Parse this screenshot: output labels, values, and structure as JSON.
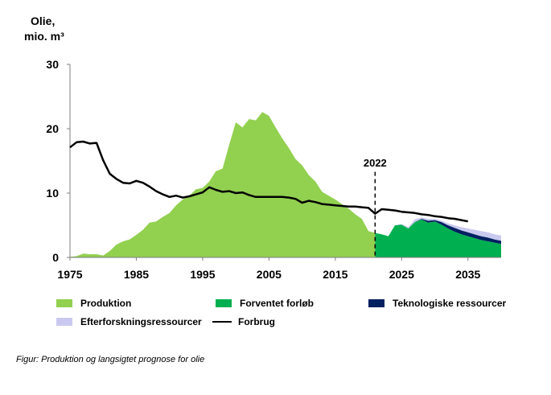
{
  "chart_data": {
    "type": "area",
    "ylabel_lines": [
      "Olie,",
      "mio. m³"
    ],
    "xlim": [
      1975,
      2040
    ],
    "ylim": [
      0,
      30
    ],
    "x_ticks": [
      1975,
      1985,
      1995,
      2005,
      2015,
      2025,
      2035
    ],
    "y_ticks": [
      0,
      10,
      20,
      30
    ],
    "annotation": {
      "label": "2022",
      "x": 2021
    },
    "colors": {
      "produktion": "#92D050",
      "forventet": "#00B050",
      "teknologiske": "#002060",
      "efterforskning": "#C9C9F0",
      "forbrug": "#000000"
    },
    "series": [
      {
        "name": "Produktion",
        "x": [
          1975,
          1976,
          1977,
          1978,
          1979,
          1980,
          1981,
          1982,
          1983,
          1984,
          1985,
          1986,
          1987,
          1988,
          1989,
          1990,
          1991,
          1992,
          1993,
          1994,
          1995,
          1996,
          1997,
          1998,
          1999,
          2000,
          2001,
          2002,
          2003,
          2004,
          2005,
          2006,
          2007,
          2008,
          2009,
          2010,
          2011,
          2012,
          2013,
          2014,
          2015,
          2016,
          2017,
          2018,
          2019,
          2020,
          2021
        ],
        "values": [
          0.1,
          0.2,
          0.6,
          0.5,
          0.5,
          0.3,
          1.0,
          2.0,
          2.5,
          2.8,
          3.5,
          4.3,
          5.4,
          5.6,
          6.3,
          6.9,
          8.1,
          9.0,
          9.6,
          10.6,
          10.8,
          11.8,
          13.4,
          13.8,
          17.5,
          21.0,
          20.2,
          21.5,
          21.3,
          22.6,
          22.0,
          20.2,
          18.5,
          17.0,
          15.3,
          14.3,
          12.8,
          11.8,
          10.2,
          9.6,
          9.0,
          8.3,
          7.6,
          6.7,
          6.0,
          4.1,
          3.8
        ]
      },
      {
        "name": "Forventet forløb",
        "x": [
          2021,
          2022,
          2023,
          2024,
          2025,
          2026,
          2027,
          2028,
          2029,
          2030,
          2031,
          2032,
          2033,
          2034,
          2035,
          2036,
          2037,
          2038,
          2039,
          2040
        ],
        "values": [
          3.8,
          3.6,
          3.3,
          5.0,
          5.1,
          4.5,
          5.5,
          5.9,
          5.4,
          5.6,
          5.1,
          4.5,
          4.0,
          3.6,
          3.3,
          3.0,
          2.7,
          2.5,
          2.3,
          2.1
        ]
      },
      {
        "name": "Teknologiske ressourcer",
        "x": [
          2027,
          2028,
          2029,
          2030,
          2031,
          2032,
          2033,
          2034,
          2035,
          2036,
          2037,
          2038,
          2039,
          2040
        ],
        "values": [
          0,
          0.1,
          0.3,
          0.2,
          0.4,
          0.5,
          0.6,
          0.6,
          0.6,
          0.6,
          0.6,
          0.6,
          0.5,
          0.5
        ]
      },
      {
        "name": "Efterforskningsressourcer",
        "x": [
          2024,
          2025,
          2026,
          2027,
          2028,
          2029,
          2030,
          2031,
          2032,
          2033,
          2034,
          2035,
          2036,
          2037,
          2038,
          2039,
          2040
        ],
        "values": [
          0,
          0.1,
          0.2,
          0.4,
          0.2,
          0.3,
          0.2,
          0.2,
          0.3,
          0.4,
          0.5,
          0.6,
          0.7,
          0.8,
          0.8,
          0.8,
          0.8
        ]
      },
      {
        "name": "Forbrug",
        "x": [
          1975,
          1976,
          1977,
          1978,
          1979,
          1980,
          1981,
          1982,
          1983,
          1984,
          1985,
          1986,
          1987,
          1988,
          1989,
          1990,
          1991,
          1992,
          1993,
          1994,
          1995,
          1996,
          1997,
          1998,
          1999,
          2000,
          2001,
          2002,
          2003,
          2004,
          2005,
          2006,
          2007,
          2008,
          2009,
          2010,
          2011,
          2012,
          2013,
          2014,
          2015,
          2016,
          2017,
          2018,
          2019,
          2020,
          2021,
          2022,
          2023,
          2024,
          2025,
          2026,
          2027,
          2028,
          2029,
          2030,
          2031,
          2032,
          2033,
          2034,
          2035
        ],
        "values": [
          17.1,
          17.9,
          18.0,
          17.7,
          17.8,
          15.1,
          13.0,
          12.2,
          11.6,
          11.5,
          11.9,
          11.6,
          11.0,
          10.3,
          9.8,
          9.4,
          9.6,
          9.3,
          9.5,
          9.8,
          10.1,
          10.9,
          10.5,
          10.2,
          10.3,
          10.0,
          10.1,
          9.7,
          9.4,
          9.4,
          9.4,
          9.4,
          9.4,
          9.3,
          9.1,
          8.5,
          8.8,
          8.6,
          8.3,
          8.2,
          8.1,
          8.0,
          7.9,
          7.9,
          7.8,
          7.7,
          6.8,
          7.5,
          7.4,
          7.3,
          7.1,
          7.0,
          6.9,
          6.7,
          6.6,
          6.4,
          6.3,
          6.1,
          6.0,
          5.8,
          5.6
        ]
      }
    ],
    "legend": [
      {
        "label": "Produktion",
        "kind": "area",
        "color_key": "produktion"
      },
      {
        "label": "Forventet forløb",
        "kind": "area",
        "color_key": "forventet"
      },
      {
        "label": "Teknologiske ressourcer",
        "kind": "area",
        "color_key": "teknologiske"
      },
      {
        "label": "Efterforskningsressourcer",
        "kind": "area",
        "color_key": "efterforskning"
      },
      {
        "label": "Forbrug",
        "kind": "line",
        "color_key": "forbrug"
      }
    ],
    "caption": "Figur: Produktion og langsigtet prognose for olie"
  }
}
